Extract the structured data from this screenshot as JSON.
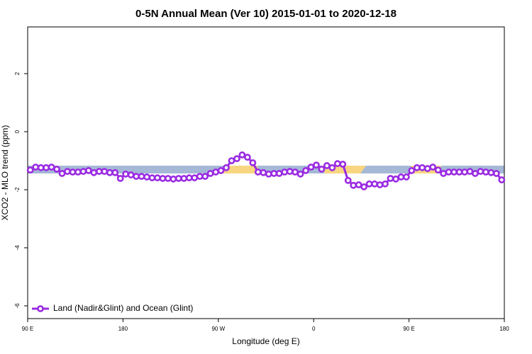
{
  "chart_data": {
    "type": "line",
    "title": "0-5N Annual Mean (Ver 10)   2015-01-01 to 2020-12-18",
    "x_label": "Longitude (deg E)",
    "y_label": "XCO2 - MLO trend (ppm)",
    "x": [
      92.5,
      97.5,
      102.5,
      107.5,
      112.5,
      117.5,
      122.5,
      127.5,
      132.5,
      137.5,
      142.5,
      147.5,
      152.5,
      157.5,
      162.5,
      167.5,
      172.5,
      177.5,
      182.5,
      187.5,
      192.5,
      197.5,
      202.5,
      207.5,
      212.5,
      217.5,
      222.5,
      227.5,
      232.5,
      237.5,
      242.5,
      247.5,
      252.5,
      257.5,
      262.5,
      267.5,
      272.5,
      277.5,
      282.5,
      287.5,
      292.5,
      297.5,
      302.5,
      307.5,
      312.5,
      317.5,
      322.5,
      327.5,
      332.5,
      337.5,
      342.5,
      347.5,
      352.5,
      357.5,
      362.5,
      367.5,
      372.5,
      377.5,
      382.5,
      387.5,
      392.5,
      397.5,
      402.5,
      407.5,
      412.5,
      417.5,
      422.5,
      427.5,
      432.5,
      437.5,
      442.5,
      447.5,
      452.5,
      457.5,
      462.5,
      467.5,
      472.5,
      477.5,
      482.5,
      487.5,
      492.5,
      497.5,
      502.5,
      507.5,
      512.5,
      517.5,
      522.5,
      527.5,
      532.5,
      537.5
    ],
    "series": [
      {
        "name": "Land (Nadir&Glint) and Ocean (Glint)",
        "color": "#9a2be2",
        "values": [
          -1.32,
          -1.22,
          -1.24,
          -1.24,
          -1.22,
          -1.29,
          -1.44,
          -1.37,
          -1.39,
          -1.39,
          -1.37,
          -1.34,
          -1.41,
          -1.37,
          -1.37,
          -1.41,
          -1.41,
          -1.61,
          -1.46,
          -1.49,
          -1.54,
          -1.54,
          -1.56,
          -1.59,
          -1.59,
          -1.61,
          -1.61,
          -1.63,
          -1.61,
          -1.61,
          -1.59,
          -1.59,
          -1.54,
          -1.54,
          -1.44,
          -1.39,
          -1.34,
          -1.24,
          -1.0,
          -0.93,
          -0.8,
          -0.88,
          -1.07,
          -1.39,
          -1.41,
          -1.46,
          -1.44,
          -1.44,
          -1.39,
          -1.37,
          -1.39,
          -1.46,
          -1.34,
          -1.22,
          -1.15,
          -1.29,
          -1.17,
          -1.24,
          -1.1,
          -1.12,
          -1.68,
          -1.85,
          -1.83,
          -1.9,
          -1.8,
          -1.8,
          -1.83,
          -1.8,
          -1.61,
          -1.63,
          -1.56,
          -1.56,
          -1.34,
          -1.24,
          -1.24,
          -1.27,
          -1.22,
          -1.32,
          -1.44,
          -1.39,
          -1.39,
          -1.39,
          -1.39,
          -1.37,
          -1.44,
          -1.37,
          -1.39,
          -1.41,
          -1.44,
          -1.66
        ]
      }
    ],
    "xlim": [
      90,
      540
    ],
    "xticks": [
      {
        "value": 90,
        "label": "90 E"
      },
      {
        "value": 180,
        "label": "180"
      },
      {
        "value": 270,
        "label": "90 W"
      },
      {
        "value": 360,
        "label": "0"
      },
      {
        "value": 450,
        "label": "90 E"
      },
      {
        "value": 540,
        "label": "180"
      }
    ],
    "ylim": [
      -6.44,
      3.61
    ],
    "yticks": [
      2,
      0,
      -2,
      -4,
      -6
    ],
    "legend": "bottom-left"
  }
}
